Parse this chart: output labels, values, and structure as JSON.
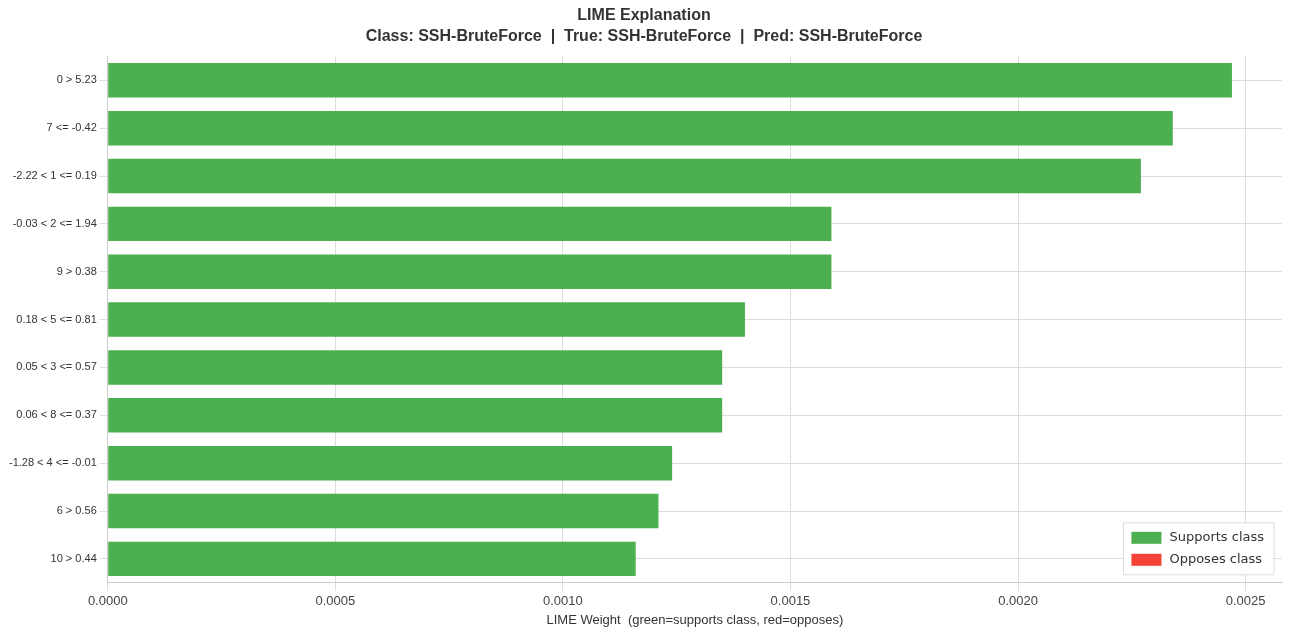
{
  "chart_data": {
    "type": "bar",
    "orientation": "horizontal",
    "title": "LIME Explanation",
    "subtitle": "Class: SSH-BruteForce  |  True: SSH-BruteForce  |  Pred: SSH-BruteForce",
    "xlabel": "LIME Weight  (green=supports class, red=opposes)",
    "categories": [
      "0 > 5.23",
      "7 <= -0.42",
      "-2.22 < 1 <= 0.19",
      "-0.03 < 2 <= 1.94",
      "9 > 0.38",
      "0.18 < 5 <= 0.81",
      "0.05 < 3 <= 0.57",
      "0.06 < 8 <= 0.37",
      "-1.28 < 4 <= -0.01",
      "6 > 0.56",
      "10 > 0.44"
    ],
    "series": [
      {
        "name": "Supports class",
        "color": "#4caf50",
        "values": [
          0.00247,
          0.00234,
          0.00227,
          0.00159,
          0.00159,
          0.0014,
          0.00135,
          0.00135,
          0.00124,
          0.00121,
          0.00116
        ]
      },
      {
        "name": "Opposes class",
        "color": "#f44336",
        "values": [
          null,
          null,
          null,
          null,
          null,
          null,
          null,
          null,
          null,
          null,
          null
        ]
      }
    ],
    "xlim": [
      0,
      0.00258
    ],
    "xticks": [
      {
        "value": 0,
        "label": "0.0000"
      },
      {
        "value": 0.0005,
        "label": "0.0005"
      },
      {
        "value": 0.001,
        "label": "0.0010"
      },
      {
        "value": 0.0015,
        "label": "0.0015"
      },
      {
        "value": 0.002,
        "label": "0.0020"
      },
      {
        "value": 0.0025,
        "label": "0.0025"
      }
    ],
    "grid": true,
    "legend": "bottom right"
  }
}
